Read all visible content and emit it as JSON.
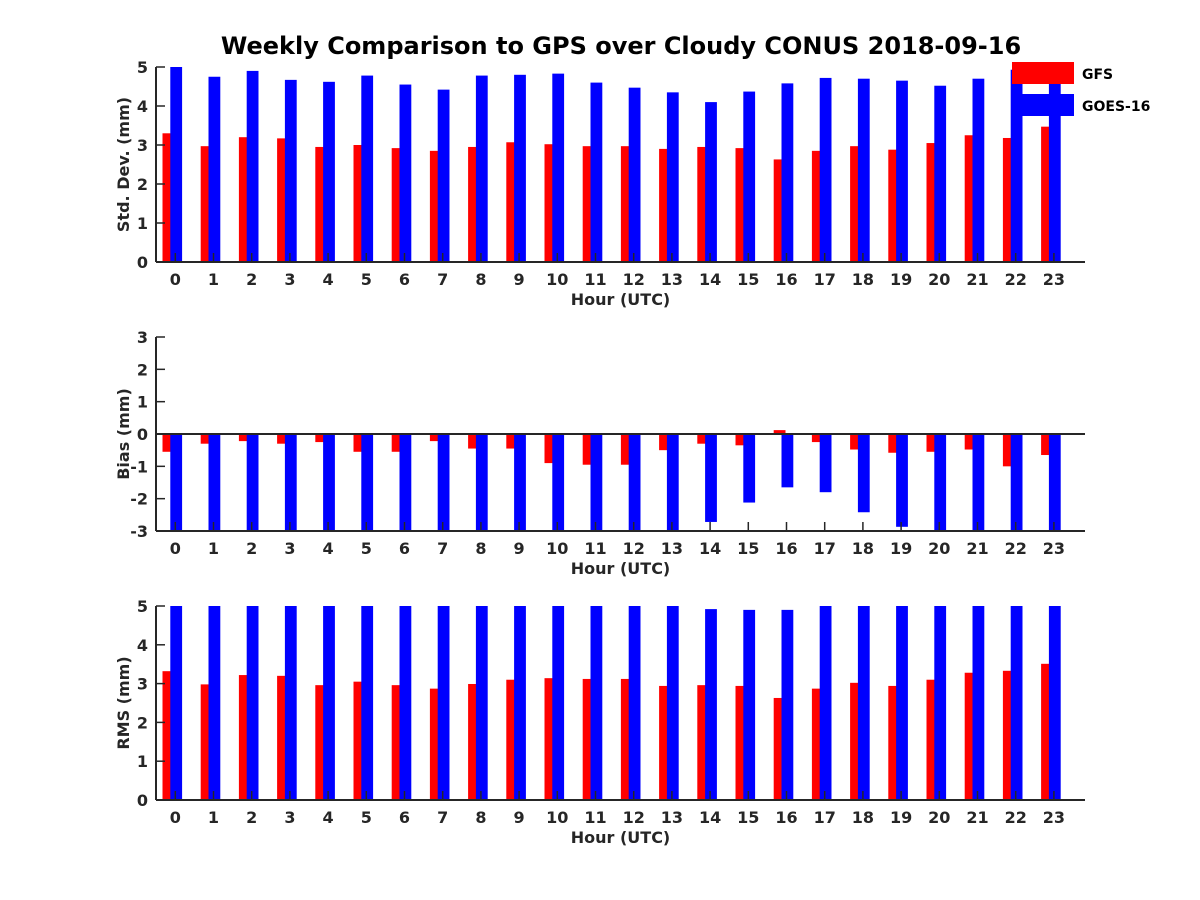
{
  "title": "Weekly Comparison to GPS over Cloudy CONUS 2018-09-16",
  "legend": {
    "placement": "top-right",
    "entries": [
      {
        "label": "GFS",
        "color": "#ff0000"
      },
      {
        "label": "GOES-16",
        "color": "#0000ff"
      }
    ]
  },
  "chart_data": [
    {
      "type": "bar",
      "title": "",
      "xlabel": "Hour (UTC)",
      "ylabel": "Std. Dev. (mm)",
      "ylim": [
        0,
        5
      ],
      "yticks": [
        0,
        1,
        2,
        3,
        4,
        5
      ],
      "categories": [
        "0",
        "1",
        "2",
        "3",
        "4",
        "5",
        "6",
        "7",
        "8",
        "9",
        "10",
        "11",
        "12",
        "13",
        "14",
        "15",
        "16",
        "17",
        "18",
        "19",
        "20",
        "21",
        "22",
        "23"
      ],
      "series": [
        {
          "name": "GFS",
          "color": "#ff0000",
          "values": [
            3.3,
            2.97,
            3.2,
            3.17,
            2.95,
            3.0,
            2.92,
            2.85,
            2.95,
            3.07,
            3.02,
            2.97,
            2.97,
            2.9,
            2.95,
            2.92,
            2.63,
            2.85,
            2.97,
            2.88,
            3.05,
            3.25,
            3.18,
            3.47
          ]
        },
        {
          "name": "GOES-16",
          "color": "#0000ff",
          "values": [
            5.0,
            4.75,
            4.9,
            4.67,
            4.62,
            4.78,
            4.55,
            4.42,
            4.78,
            4.8,
            4.83,
            4.6,
            4.47,
            4.35,
            4.1,
            4.37,
            4.58,
            4.72,
            4.7,
            4.65,
            4.52,
            4.7,
            4.93,
            4.65
          ]
        }
      ]
    },
    {
      "type": "bar",
      "title": "",
      "xlabel": "Hour (UTC)",
      "ylabel": "Bias (mm)",
      "ylim": [
        -3,
        3
      ],
      "yticks": [
        -3,
        -2,
        -1,
        0,
        1,
        2,
        3
      ],
      "categories": [
        "0",
        "1",
        "2",
        "3",
        "4",
        "5",
        "6",
        "7",
        "8",
        "9",
        "10",
        "11",
        "12",
        "13",
        "14",
        "15",
        "16",
        "17",
        "18",
        "19",
        "20",
        "21",
        "22",
        "23"
      ],
      "series": [
        {
          "name": "GFS",
          "color": "#ff0000",
          "values": [
            -0.55,
            -0.3,
            -0.22,
            -0.3,
            -0.25,
            -0.55,
            -0.55,
            -0.22,
            -0.45,
            -0.45,
            -0.9,
            -0.95,
            -0.95,
            -0.5,
            -0.3,
            -0.35,
            0.12,
            -0.25,
            -0.48,
            -0.58,
            -0.55,
            -0.48,
            -1.0,
            -0.65
          ]
        },
        {
          "name": "GOES-16",
          "color": "#0000ff",
          "values": [
            -3.0,
            -3.0,
            -3.0,
            -3.0,
            -3.0,
            -3.0,
            -3.0,
            -3.0,
            -3.0,
            -3.0,
            -3.0,
            -3.0,
            -3.0,
            -3.0,
            -2.72,
            -2.12,
            -1.65,
            -1.8,
            -2.42,
            -2.87,
            -3.0,
            -3.0,
            -3.0,
            -3.0
          ]
        }
      ]
    },
    {
      "type": "bar",
      "title": "",
      "xlabel": "Hour (UTC)",
      "ylabel": "RMS (mm)",
      "ylim": [
        0,
        5
      ],
      "yticks": [
        0,
        1,
        2,
        3,
        4,
        5
      ],
      "categories": [
        "0",
        "1",
        "2",
        "3",
        "4",
        "5",
        "6",
        "7",
        "8",
        "9",
        "10",
        "11",
        "12",
        "13",
        "14",
        "15",
        "16",
        "17",
        "18",
        "19",
        "20",
        "21",
        "22",
        "23"
      ],
      "series": [
        {
          "name": "GFS",
          "color": "#ff0000",
          "values": [
            3.32,
            2.98,
            3.22,
            3.2,
            2.96,
            3.05,
            2.96,
            2.87,
            2.99,
            3.1,
            3.14,
            3.12,
            3.12,
            2.94,
            2.96,
            2.94,
            2.63,
            2.87,
            3.02,
            2.94,
            3.1,
            3.28,
            3.33,
            3.51
          ]
        },
        {
          "name": "GOES-16",
          "color": "#0000ff",
          "values": [
            5.0,
            5.0,
            5.0,
            5.0,
            5.0,
            5.0,
            5.0,
            5.0,
            5.0,
            5.0,
            5.0,
            5.0,
            5.0,
            5.0,
            4.92,
            4.9,
            4.9,
            5.0,
            5.0,
            5.0,
            5.0,
            5.0,
            5.0,
            5.0
          ]
        }
      ]
    }
  ]
}
